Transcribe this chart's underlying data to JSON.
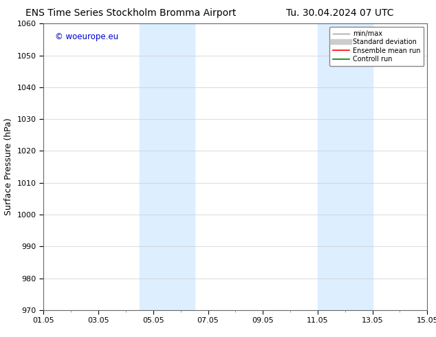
{
  "title_left": "ENS Time Series Stockholm Bromma Airport",
  "title_right": "Tu. 30.04.2024 07 UTC",
  "ylabel": "Surface Pressure (hPa)",
  "ylim": [
    970,
    1060
  ],
  "yticks": [
    970,
    980,
    990,
    1000,
    1010,
    1020,
    1030,
    1040,
    1050,
    1060
  ],
  "xtick_labels": [
    "01.05",
    "03.05",
    "05.05",
    "07.05",
    "09.05",
    "11.05",
    "13.05",
    "15.05"
  ],
  "xtick_positions": [
    0,
    2,
    4,
    6,
    8,
    10,
    12,
    14
  ],
  "xlim": [
    0,
    14
  ],
  "shaded_bands": [
    {
      "xstart": 3.5,
      "xend": 5.5
    },
    {
      "xstart": 10.0,
      "xend": 12.0
    }
  ],
  "shaded_color": "#ddeeff",
  "watermark_text": "© woeurope.eu",
  "watermark_color": "#0000cc",
  "legend_entries": [
    {
      "label": "min/max",
      "color": "#999999",
      "lw": 1.0
    },
    {
      "label": "Standard deviation",
      "color": "#cccccc",
      "lw": 6
    },
    {
      "label": "Ensemble mean run",
      "color": "#ff0000",
      "lw": 1.2
    },
    {
      "label": "Controll run",
      "color": "#008000",
      "lw": 1.2
    }
  ],
  "background_color": "#ffffff",
  "grid_color": "#cccccc",
  "title_fontsize": 10,
  "tick_fontsize": 8,
  "ylabel_fontsize": 9
}
